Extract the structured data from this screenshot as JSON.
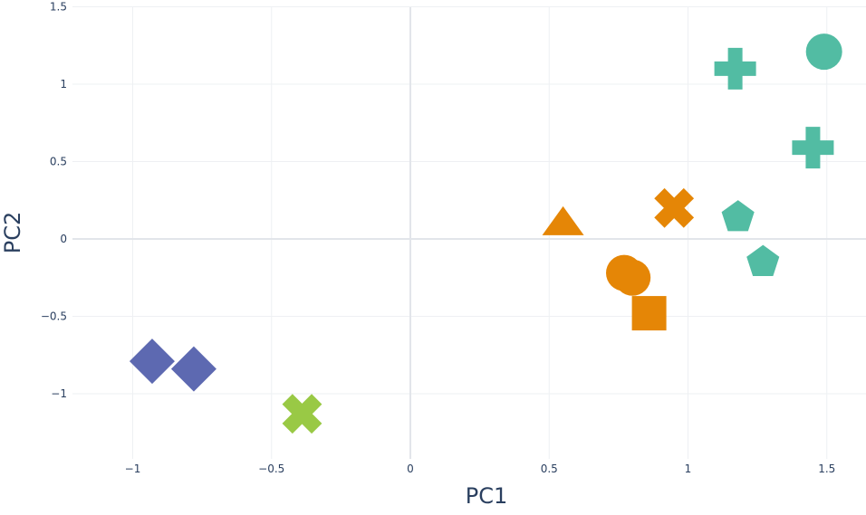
{
  "chart_data": {
    "type": "scatter",
    "title": "",
    "xlabel": "PC1",
    "ylabel": "PC2",
    "xlim": [
      -1.2,
      1.65
    ],
    "ylim": [
      -1.42,
      1.5
    ],
    "grid": true,
    "legend": "none",
    "x_ticks": [
      {
        "value": -1,
        "label": "−1"
      },
      {
        "value": -0.5,
        "label": "−0.5"
      },
      {
        "value": 0,
        "label": "0"
      },
      {
        "value": 0.5,
        "label": "0.5"
      },
      {
        "value": 1,
        "label": "1"
      },
      {
        "value": 1.5,
        "label": "1.5"
      }
    ],
    "y_ticks": [
      {
        "value": -1,
        "label": "−1"
      },
      {
        "value": -0.5,
        "label": "−0.5"
      },
      {
        "value": 0,
        "label": "0"
      },
      {
        "value": 0.5,
        "label": "0.5"
      },
      {
        "value": 1,
        "label": "1"
      },
      {
        "value": 1.5,
        "label": "1.5"
      }
    ],
    "points": [
      {
        "x": 1.49,
        "y": 1.21,
        "symbol": "circle",
        "color": "#52bca3"
      },
      {
        "x": 1.17,
        "y": 1.1,
        "symbol": "cross",
        "color": "#52bca3"
      },
      {
        "x": 1.45,
        "y": 0.59,
        "symbol": "cross",
        "color": "#52bca3"
      },
      {
        "x": 1.18,
        "y": 0.14,
        "symbol": "pentagon",
        "color": "#52bca3"
      },
      {
        "x": 1.27,
        "y": -0.15,
        "symbol": "pentagon",
        "color": "#52bca3"
      },
      {
        "x": 0.95,
        "y": 0.2,
        "symbol": "x",
        "color": "#e58606"
      },
      {
        "x": 0.55,
        "y": 0.1,
        "symbol": "triangle-up",
        "color": "#e58606"
      },
      {
        "x": 0.77,
        "y": -0.22,
        "symbol": "circle",
        "color": "#e58606"
      },
      {
        "x": 0.8,
        "y": -0.25,
        "symbol": "circle",
        "color": "#e58606"
      },
      {
        "x": 0.86,
        "y": -0.48,
        "symbol": "square",
        "color": "#e58606"
      },
      {
        "x": -0.93,
        "y": -0.79,
        "symbol": "diamond",
        "color": "#5d69b1"
      },
      {
        "x": -0.78,
        "y": -0.84,
        "symbol": "diamond",
        "color": "#5d69b1"
      },
      {
        "x": -0.39,
        "y": -1.13,
        "symbol": "x",
        "color": "#99c945"
      }
    ]
  }
}
